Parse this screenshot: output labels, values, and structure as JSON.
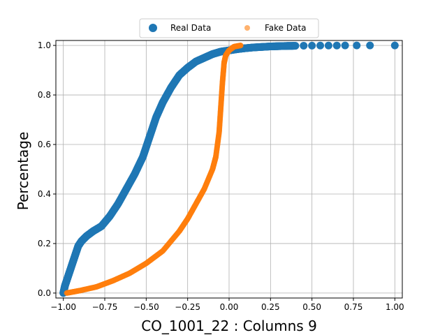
{
  "chart_data": {
    "type": "scatter",
    "xlabel": "CO_1001_22 : Columns 9",
    "ylabel": "Percentage",
    "xlim": [
      -1.045,
      1.045
    ],
    "ylim": [
      -0.02,
      1.02
    ],
    "xticks": [
      -1.0,
      -0.75,
      -0.5,
      -0.25,
      0.0,
      0.25,
      0.5,
      0.75,
      1.0
    ],
    "xtick_labels": [
      "−1.00",
      "−0.75",
      "−0.50",
      "−0.25",
      "0.00",
      "0.25",
      "0.50",
      "0.75",
      "1.00"
    ],
    "yticks": [
      0.0,
      0.2,
      0.4,
      0.6,
      0.8,
      1.0
    ],
    "ytick_labels": [
      "0.0",
      "0.2",
      "0.4",
      "0.6",
      "0.8",
      "1.0"
    ],
    "grid": true,
    "legend_position": "upper-center",
    "series": [
      {
        "name": "Real Data",
        "color": "#1f77b4",
        "marker": "circle-large",
        "points": [
          [
            -1.0,
            0.0
          ],
          [
            -0.99,
            0.03
          ],
          [
            -0.97,
            0.07
          ],
          [
            -0.95,
            0.11
          ],
          [
            -0.93,
            0.15
          ],
          [
            -0.91,
            0.19
          ],
          [
            -0.89,
            0.21
          ],
          [
            -0.86,
            0.23
          ],
          [
            -0.82,
            0.25
          ],
          [
            -0.77,
            0.27
          ],
          [
            -0.72,
            0.31
          ],
          [
            -0.67,
            0.36
          ],
          [
            -0.62,
            0.42
          ],
          [
            -0.57,
            0.48
          ],
          [
            -0.52,
            0.55
          ],
          [
            -0.48,
            0.63
          ],
          [
            -0.44,
            0.71
          ],
          [
            -0.4,
            0.77
          ],
          [
            -0.35,
            0.83
          ],
          [
            -0.3,
            0.88
          ],
          [
            -0.25,
            0.91
          ],
          [
            -0.2,
            0.935
          ],
          [
            -0.15,
            0.95
          ],
          [
            -0.1,
            0.965
          ],
          [
            -0.05,
            0.975
          ],
          [
            0.0,
            0.98
          ],
          [
            0.05,
            0.985
          ],
          [
            0.1,
            0.989
          ],
          [
            0.15,
            0.992
          ],
          [
            0.2,
            0.994
          ],
          [
            0.25,
            0.996
          ],
          [
            0.3,
            0.997
          ],
          [
            0.35,
            0.998
          ],
          [
            0.4,
            0.9985
          ],
          [
            0.45,
            0.999
          ],
          [
            0.5,
            0.9993
          ],
          [
            0.55,
            0.9995
          ],
          [
            0.6,
            0.9996
          ],
          [
            0.65,
            0.9997
          ],
          [
            0.7,
            0.9998
          ],
          [
            0.77,
            0.9999
          ],
          [
            0.85,
            0.9999
          ],
          [
            1.0,
            1.0
          ]
        ]
      },
      {
        "name": "Fake Data",
        "color": "#ff7f0e",
        "marker": "circle-small",
        "points": [
          [
            -0.98,
            0.0
          ],
          [
            -0.9,
            0.01
          ],
          [
            -0.8,
            0.025
          ],
          [
            -0.7,
            0.05
          ],
          [
            -0.6,
            0.08
          ],
          [
            -0.5,
            0.12
          ],
          [
            -0.4,
            0.17
          ],
          [
            -0.3,
            0.25
          ],
          [
            -0.25,
            0.3
          ],
          [
            -0.2,
            0.36
          ],
          [
            -0.15,
            0.42
          ],
          [
            -0.1,
            0.5
          ],
          [
            -0.08,
            0.55
          ],
          [
            -0.06,
            0.65
          ],
          [
            -0.05,
            0.75
          ],
          [
            -0.04,
            0.85
          ],
          [
            -0.03,
            0.93
          ],
          [
            -0.02,
            0.96
          ],
          [
            0.0,
            0.98
          ],
          [
            0.03,
            0.995
          ],
          [
            0.07,
            1.0
          ]
        ]
      }
    ]
  }
}
